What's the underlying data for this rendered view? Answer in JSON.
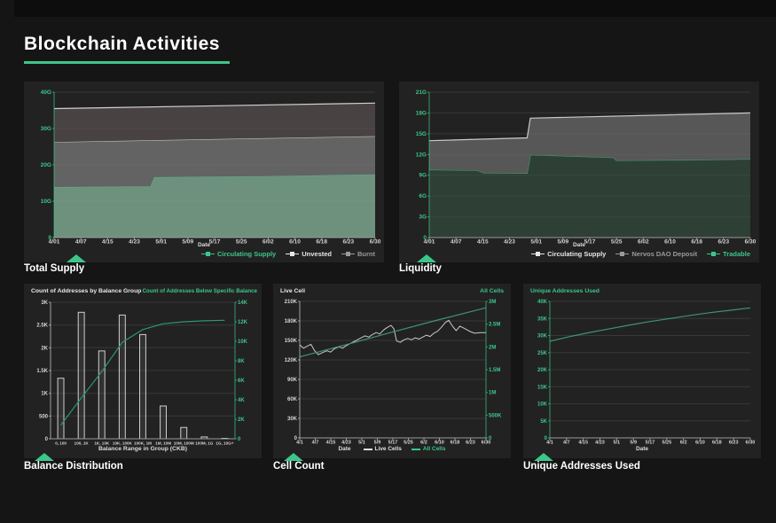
{
  "header": {
    "title": "Blockchain Activities"
  },
  "accent_color": "#3cc68a",
  "chart_data": [
    {
      "id": "total_supply",
      "type": "area",
      "panel_title": "Total Supply",
      "x_axis_title": "Date",
      "x_mode": "edge",
      "x_tick_labels": [
        "4/01",
        "4/07",
        "4/15",
        "4/23",
        "5/01",
        "5/09",
        "5/17",
        "5/25",
        "6/02",
        "6/10",
        "6/18",
        "6/23",
        "6/30"
      ],
      "left_axis": {
        "max": 40,
        "tick_values": [
          0,
          10,
          20,
          30,
          40
        ],
        "tick_labels": [
          "0",
          "10G",
          "20G",
          "30G",
          "40G"
        ],
        "color": "#3cc68a"
      },
      "legend": [
        {
          "label": "Circulating Supply",
          "color": "#3cc68a"
        },
        {
          "label": "Unvested",
          "color": "#e6e6e6"
        },
        {
          "label": "Burnt",
          "color": "#9a9a9a"
        }
      ],
      "areas": [
        {
          "name": "Circulating Supply",
          "points": [
            [
              0,
              13.9
            ],
            [
              0.3,
              14.1
            ],
            [
              0.312,
              16.6
            ],
            [
              0.67,
              16.9
            ],
            [
              1,
              17.4
            ]
          ],
          "fill": "#6d917d",
          "stroke": "#5fae89"
        },
        {
          "name": "Unvested",
          "points": [
            [
              0,
              26.3
            ],
            [
              1,
              27.9
            ]
          ],
          "fill": "#636363",
          "stroke": "#c0c0c0"
        },
        {
          "name": "Burnt",
          "points": [
            [
              0,
              35.5
            ],
            [
              1,
              37.0
            ]
          ],
          "fill": "#484242",
          "stroke": "#d0d0d0"
        }
      ]
    },
    {
      "id": "liquidity",
      "type": "area",
      "panel_title": "Liquidity",
      "x_axis_title": "Date",
      "x_mode": "edge",
      "x_tick_labels": [
        "4/01",
        "4/07",
        "4/15",
        "4/23",
        "5/01",
        "5/09",
        "5/17",
        "5/25",
        "6/02",
        "6/10",
        "6/18",
        "6/23",
        "6/30"
      ],
      "left_axis": {
        "max": 21,
        "tick_values": [
          0,
          3,
          6,
          9,
          12,
          15,
          18,
          21
        ],
        "tick_labels": [
          "0",
          "3G",
          "6G",
          "9G",
          "12G",
          "15G",
          "18G",
          "21G"
        ],
        "color": "#3cc68a"
      },
      "legend": [
        {
          "label": "Circulating Supply",
          "color": "#e6e6e6"
        },
        {
          "label": "Nervos DAO Deposit",
          "color": "#9a9a9a"
        },
        {
          "label": "Tradable",
          "color": "#3cc68a"
        }
      ],
      "areas": [
        {
          "name": "Tradable",
          "points": [
            [
              0,
              9.8
            ],
            [
              0.15,
              9.7
            ],
            [
              0.17,
              9.35
            ],
            [
              0.305,
              9.3
            ],
            [
              0.315,
              11.95
            ],
            [
              0.55,
              11.6
            ],
            [
              0.575,
              11.55
            ],
            [
              0.582,
              11.15
            ],
            [
              0.8,
              11.2
            ],
            [
              1,
              11.35
            ]
          ],
          "fill": "#2e3f36",
          "stroke": "#44966f"
        },
        {
          "name": "Nervos DAO Deposit",
          "points": [
            [
              0,
              14.0
            ],
            [
              0.305,
              14.4
            ],
            [
              0.315,
              17.25
            ],
            [
              1,
              18.0
            ]
          ],
          "fill": "#575757",
          "stroke": "#c9c9c9"
        }
      ]
    },
    {
      "id": "balance_distribution",
      "type": "bar+line",
      "panel_title": "Balance Distribution",
      "titles": {
        "left": "Count of Addresses by Balance Group",
        "right": "Count of Addresses Below Specific Balance"
      },
      "x_axis_title": "Balance Range in Group (CKB)",
      "x_mode": "center",
      "x_tick_labels": [
        "0, 100",
        "100, 1K",
        "1K, 10K",
        "10K, 100K",
        "100K, 1M",
        "1M, 10M",
        "10M, 100M",
        "100M, 1G",
        "1G, 10G+"
      ],
      "left_axis": {
        "max": 3000,
        "tick_values": [
          0,
          500,
          1000,
          1500,
          2000,
          2500,
          3000
        ],
        "tick_labels": [
          "0",
          "500",
          "1K",
          "1.5K",
          "2K",
          "2.5K",
          "3K"
        ],
        "color": "#d5d5d5"
      },
      "right_axis": {
        "max": 14000,
        "tick_values": [
          0,
          2000,
          4000,
          6000,
          8000,
          10000,
          12000,
          14000
        ],
        "tick_labels": [
          "0",
          "2K",
          "4K",
          "6K",
          "8K",
          "10K",
          "12K",
          "14K"
        ],
        "color": "#3cc68a"
      },
      "bars": {
        "name": "Count of Addresses by Balance Group",
        "values": [
          1330,
          2780,
          1930,
          2720,
          2290,
          720,
          250,
          40,
          10
        ]
      },
      "lines": [
        {
          "name": "Count of Addresses Below Specific Balance",
          "axis": "right",
          "color": "#2f9572",
          "width": 1.2,
          "points": [
            [
              0.056,
              1400
            ],
            [
              0.167,
              4200
            ],
            [
              0.278,
              6900
            ],
            [
              0.389,
              9900
            ],
            [
              0.5,
              11200
            ],
            [
              0.611,
              11800
            ],
            [
              0.722,
              12000
            ],
            [
              0.833,
              12100
            ],
            [
              0.944,
              12150
            ]
          ]
        }
      ]
    },
    {
      "id": "cell_count",
      "type": "line",
      "panel_title": "Cell Count",
      "titles": {
        "left": "Live Cell",
        "right": "All Cells"
      },
      "x_axis_title": "Date",
      "x_mode": "edge",
      "x_tick_labels": [
        "4/1",
        "4/7",
        "4/15",
        "4/23",
        "5/1",
        "5/9",
        "5/17",
        "5/25",
        "6/2",
        "6/10",
        "6/18",
        "6/23",
        "6/30"
      ],
      "left_axis": {
        "max": 210,
        "tick_values": [
          0,
          30,
          60,
          90,
          120,
          150,
          180,
          210
        ],
        "tick_labels": [
          "0",
          "30K",
          "60K",
          "90K",
          "120K",
          "150K",
          "180K",
          "210K"
        ],
        "color": "#d5d5d5"
      },
      "right_axis": {
        "max": 3,
        "tick_values": [
          0,
          0.5,
          1,
          1.5,
          2,
          2.5,
          3
        ],
        "tick_labels": [
          "0",
          "500K",
          "1M",
          "1.5M",
          "2M",
          "2.5M",
          "3M"
        ],
        "color": "#3cc68a"
      },
      "legend": [
        {
          "label": "Live Cells",
          "color": "#e0e0e0"
        },
        {
          "label": "All Cells",
          "color": "#3cc68a"
        }
      ],
      "lines": [
        {
          "name": "Live Cells",
          "axis": "left",
          "color": "#c9c9c9",
          "width": 1,
          "points": [
            [
              0,
              143
            ],
            [
              0.02,
              138
            ],
            [
              0.045,
              142
            ],
            [
              0.06,
              144
            ],
            [
              0.08,
              134
            ],
            [
              0.1,
              128
            ],
            [
              0.12,
              131
            ],
            [
              0.145,
              134
            ],
            [
              0.165,
              132
            ],
            [
              0.185,
              137
            ],
            [
              0.21,
              140
            ],
            [
              0.23,
              138
            ],
            [
              0.25,
              142
            ],
            [
              0.27,
              145
            ],
            [
              0.29,
              148
            ],
            [
              0.31,
              151
            ],
            [
              0.33,
              154
            ],
            [
              0.35,
              157
            ],
            [
              0.37,
              155
            ],
            [
              0.39,
              159
            ],
            [
              0.41,
              162
            ],
            [
              0.43,
              160
            ],
            [
              0.45,
              166
            ],
            [
              0.47,
              170
            ],
            [
              0.49,
              173
            ],
            [
              0.505,
              168
            ],
            [
              0.52,
              149
            ],
            [
              0.54,
              147
            ],
            [
              0.56,
              151
            ],
            [
              0.58,
              153
            ],
            [
              0.6,
              151
            ],
            [
              0.62,
              154
            ],
            [
              0.64,
              152
            ],
            [
              0.66,
              155
            ],
            [
              0.68,
              158
            ],
            [
              0.7,
              156
            ],
            [
              0.72,
              161
            ],
            [
              0.74,
              164
            ],
            [
              0.76,
              170
            ],
            [
              0.78,
              177
            ],
            [
              0.8,
              181
            ],
            [
              0.82,
              172
            ],
            [
              0.84,
              165
            ],
            [
              0.86,
              172
            ],
            [
              0.88,
              169
            ],
            [
              0.9,
              166
            ],
            [
              0.92,
              163
            ],
            [
              0.94,
              161
            ],
            [
              0.97,
              162
            ],
            [
              1,
              162
            ]
          ]
        },
        {
          "name": "All Cells",
          "axis": "right",
          "color": "#3e9471",
          "width": 1.2,
          "points": [
            [
              0,
              1.78
            ],
            [
              0.25,
              2.05
            ],
            [
              0.5,
              2.33
            ],
            [
              0.75,
              2.6
            ],
            [
              1,
              2.86
            ]
          ]
        }
      ]
    },
    {
      "id": "unique_addresses",
      "type": "line",
      "panel_title": "Unique Addresses Used",
      "titles": {
        "left": "Unique Addresses Used"
      },
      "x_axis_title": "Date",
      "x_mode": "edge",
      "x_tick_labels": [
        "4/1",
        "4/7",
        "4/15",
        "4/23",
        "5/1",
        "5/9",
        "5/17",
        "5/25",
        "6/2",
        "6/10",
        "6/18",
        "6/23",
        "6/30"
      ],
      "left_axis": {
        "max": 40,
        "tick_values": [
          0,
          5,
          10,
          15,
          20,
          25,
          30,
          35,
          40
        ],
        "tick_labels": [
          "0",
          "5K",
          "10K",
          "15K",
          "20K",
          "25K",
          "30K",
          "35K",
          "40K"
        ],
        "color": "#3cc68a"
      },
      "lines": [
        {
          "name": "Unique Addresses Used",
          "axis": "left",
          "color": "#3e9471",
          "width": 1.2,
          "points": [
            [
              0,
              28.3
            ],
            [
              0.1,
              29.7
            ],
            [
              0.2,
              30.9
            ],
            [
              0.3,
              32.0
            ],
            [
              0.4,
              33.1
            ],
            [
              0.5,
              34.1
            ],
            [
              0.6,
              35.0
            ],
            [
              0.7,
              35.9
            ],
            [
              0.8,
              36.7
            ],
            [
              0.9,
              37.4
            ],
            [
              1,
              38.1
            ]
          ]
        }
      ]
    }
  ]
}
